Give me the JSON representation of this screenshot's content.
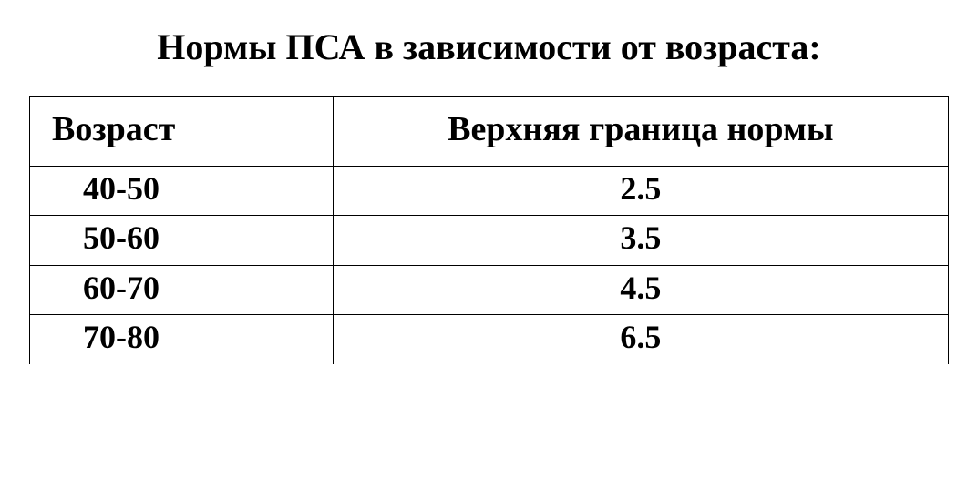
{
  "title": "Нормы ПСА в зависимости от возраста:",
  "table": {
    "type": "table",
    "background_color": "#ffffff",
    "border_color": "#000000",
    "text_color": "#000000",
    "title_fontsize": 40,
    "header_fontsize": 38,
    "cell_fontsize": 36,
    "font_weight": "bold",
    "font_family": "serif",
    "columns": [
      {
        "key": "age",
        "label": "Возраст",
        "align_header": "left",
        "align_cell": "left",
        "width_pct": 33
      },
      {
        "key": "value",
        "label": "Верхняя граница нормы",
        "align_header": "center",
        "align_cell": "center",
        "width_pct": 67
      }
    ],
    "rows": [
      {
        "age": "40-50",
        "value": "2.5"
      },
      {
        "age": "50-60",
        "value": "3.5"
      },
      {
        "age": "60-70",
        "value": "4.5"
      },
      {
        "age": "70-80",
        "value": "6.5"
      }
    ]
  }
}
